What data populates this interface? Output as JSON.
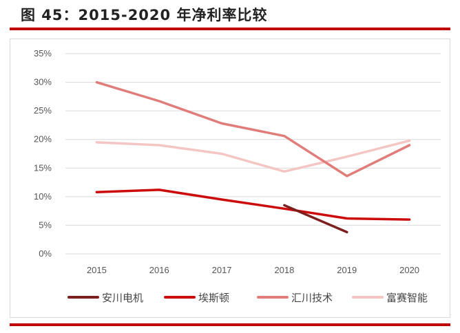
{
  "figure": {
    "title": "图 45：2015-2020 年净利率比较"
  },
  "colors": {
    "accent": "#c00000",
    "grid": "#d9d9d9"
  },
  "chart_data": {
    "type": "line",
    "title": "",
    "xlabel": "",
    "ylabel": "",
    "x": [
      "2015",
      "2016",
      "2017",
      "2018",
      "2019",
      "2020"
    ],
    "ylim": [
      0,
      35
    ],
    "y_ticks": [
      0,
      5,
      10,
      15,
      20,
      25,
      30,
      35
    ],
    "y_tick_labels": [
      "0%",
      "5%",
      "10%",
      "15%",
      "20%",
      "25%",
      "30%",
      "35%"
    ],
    "grid": true,
    "legend_position": "bottom",
    "series": [
      {
        "name": "安川电机",
        "color": "#7b1f1f",
        "width": 3.5,
        "values": [
          null,
          null,
          null,
          8.5,
          3.8,
          null
        ]
      },
      {
        "name": "埃斯顿",
        "color": "#cc0c0c",
        "width": 3.5,
        "values": [
          10.8,
          11.2,
          9.5,
          7.9,
          6.2,
          6.0
        ]
      },
      {
        "name": "汇川技术",
        "color": "#e07d7a",
        "width": 3.5,
        "values": [
          30.0,
          26.7,
          22.8,
          20.6,
          13.6,
          19.0
        ]
      },
      {
        "name": "富赛智能",
        "color": "#f4c6c3",
        "width": 3.5,
        "values": [
          19.5,
          19.0,
          17.5,
          14.4,
          17.0,
          19.8
        ]
      }
    ]
  }
}
